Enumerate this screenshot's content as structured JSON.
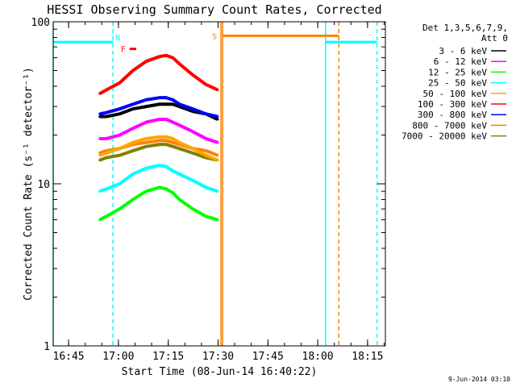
{
  "chart_data": {
    "type": "line",
    "title": "HESSI Observing Summary Count Rates, Corrected",
    "xlabel": "Start Time (08-Jun-14 16:40:22)",
    "ylabel": "Corrected Count Rate (s⁻¹ detector⁻¹)",
    "footer": "9-Jun-2014 03:10",
    "y_scale": "log",
    "ylim": [
      1,
      100
    ],
    "y_ticks": [
      "1",
      "10",
      "100"
    ],
    "xlim_minutes": [
      0,
      100
    ],
    "x_ticks": [
      {
        "t": 4.63,
        "label": "16:45"
      },
      {
        "t": 19.63,
        "label": "17:00"
      },
      {
        "t": 34.63,
        "label": "17:15"
      },
      {
        "t": 49.63,
        "label": "17:30"
      },
      {
        "t": 64.63,
        "label": "17:45"
      },
      {
        "t": 79.63,
        "label": "18:00"
      },
      {
        "t": 94.63,
        "label": "18:15"
      }
    ],
    "x_unit_note": "x in minutes after 16:40:22",
    "legend": {
      "header": [
        "Det 1,3,5,6,7,9,",
        "Att 0"
      ],
      "position": "right"
    },
    "series": [
      {
        "name": "3 - 6 keV",
        "color": "#000000",
        "x": [
          14,
          16,
          20,
          24,
          28,
          32,
          34,
          36,
          38,
          42,
          46,
          49.5
        ],
        "y": [
          26,
          26,
          27,
          29,
          30,
          31,
          31,
          31,
          30,
          28,
          27,
          25
        ]
      },
      {
        "name": "6 - 12 keV",
        "color": "#ff00ff",
        "x": [
          14,
          16,
          20,
          24,
          28,
          32,
          34,
          36,
          38,
          42,
          46,
          49.5
        ],
        "y": [
          19,
          19,
          20,
          22,
          24,
          25,
          25,
          24,
          23,
          21,
          19,
          18
        ]
      },
      {
        "name": "12 - 25 keV",
        "color": "#00ff00",
        "x": [
          14,
          16,
          20,
          24,
          28,
          32,
          34,
          36,
          38,
          42,
          46,
          49.5
        ],
        "y": [
          6,
          6.3,
          7,
          8,
          9,
          9.5,
          9.3,
          8.8,
          8,
          7,
          6.3,
          6
        ]
      },
      {
        "name": "25 - 50 keV",
        "color": "#00ffff",
        "x": [
          14,
          16,
          20,
          24,
          28,
          32,
          34,
          36,
          38,
          42,
          46,
          49.5
        ],
        "y": [
          9,
          9.3,
          10,
          11.5,
          12.5,
          13,
          12.8,
          12,
          11.5,
          10.5,
          9.5,
          9
        ]
      },
      {
        "name": "50 - 100 keV",
        "color": "#ffa500",
        "x": [
          14,
          16,
          20,
          24,
          28,
          32,
          34,
          36,
          38,
          42,
          46,
          49.5
        ],
        "y": [
          15,
          15.5,
          16.5,
          18,
          19,
          19.5,
          19.5,
          19,
          18,
          16.5,
          15,
          14
        ]
      },
      {
        "name": "100 - 300 keV",
        "color": "#ff0000",
        "x": [
          14,
          16,
          20,
          24,
          28,
          32,
          34,
          36,
          38,
          42,
          46,
          49.5
        ],
        "y": [
          36,
          38,
          42,
          50,
          57,
          61,
          62,
          60,
          55,
          47,
          41,
          38
        ]
      },
      {
        "name": "300 - 800 keV",
        "color": "#0000ff",
        "x": [
          14,
          16,
          20,
          24,
          28,
          32,
          34,
          36,
          38,
          42,
          46,
          49.5
        ],
        "y": [
          27,
          27.5,
          29,
          31,
          33,
          34,
          34,
          33,
          31,
          29,
          27,
          26
        ]
      },
      {
        "name": "800 - 7000 keV",
        "color": "#ff8000",
        "x": [
          14,
          16,
          20,
          24,
          28,
          32,
          34,
          36,
          38,
          42,
          46,
          49.5
        ],
        "y": [
          15.5,
          16,
          16.5,
          17.5,
          18,
          18.5,
          18.5,
          18,
          17.5,
          16.5,
          16,
          15
        ]
      },
      {
        "name": "7000 - 20000 keV",
        "color": "#808000",
        "x": [
          14,
          16,
          20,
          24,
          28,
          32,
          34,
          36,
          38,
          42,
          46,
          49.5
        ],
        "y": [
          14,
          14.5,
          15,
          16,
          17,
          17.5,
          17.5,
          17,
          16.5,
          15.5,
          14.5,
          14
        ]
      }
    ],
    "flag_lines": [
      {
        "label": "N",
        "color": "#00ffff",
        "segments": [
          [
            0,
            18
          ],
          [
            82,
            97.5
          ]
        ],
        "y": 75
      },
      {
        "label": "F",
        "color": "#ff0000",
        "segments": [
          [
            23,
            25
          ]
        ],
        "y": 68
      },
      {
        "label": "S",
        "color": "#ff8000",
        "segments": [
          [
            51,
            86
          ]
        ],
        "y": 82
      }
    ],
    "vertical_markers": [
      {
        "t": 0,
        "color": "#00ffff",
        "style": "solid"
      },
      {
        "t": 18,
        "color": "#00ffff",
        "style": "dashed"
      },
      {
        "t": 50.5,
        "color": "#ff8000",
        "style": "solid"
      },
      {
        "t": 51,
        "color": "#ff8000",
        "style": "solid"
      },
      {
        "t": 82,
        "color": "#00ffff",
        "style": "solid"
      },
      {
        "t": 86,
        "color": "#ff8000",
        "style": "dashed"
      },
      {
        "t": 97.5,
        "color": "#00ffff",
        "style": "dashed"
      }
    ]
  }
}
